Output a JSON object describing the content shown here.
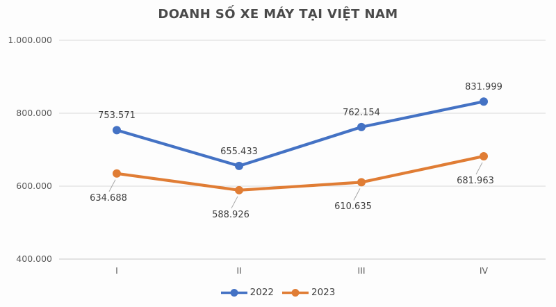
{
  "chart_data": {
    "type": "line",
    "title": "DOANH SỐ XE MÁY TẠI VIỆT NAM",
    "categories": [
      "I",
      "II",
      "III",
      "IV"
    ],
    "series": [
      {
        "name": "2022",
        "color": "#4472C4",
        "values": [
          753571,
          655433,
          762154,
          831999
        ],
        "data_labels": [
          "753.571",
          "655.433",
          "762.154",
          "831.999"
        ],
        "label_position": "above"
      },
      {
        "name": "2023",
        "color": "#E07D35",
        "values": [
          634688,
          588926,
          610635,
          681963
        ],
        "data_labels": [
          "634.688",
          "588.926",
          "610.635",
          "681.963"
        ],
        "label_position": "below"
      }
    ],
    "y_axis": {
      "min": 400000,
      "max": 1000000,
      "step": 200000,
      "ticks": [
        {
          "value": 1000000,
          "label": "1.000.000"
        },
        {
          "value": 800000,
          "label": "800.000"
        },
        {
          "value": 600000,
          "label": "600.000"
        },
        {
          "value": 400000,
          "label": "400.000"
        }
      ]
    },
    "grid": true,
    "legend_position": "bottom",
    "legend": [
      "2022",
      "2023"
    ]
  },
  "colors": {
    "gridline": "#d9d9d9",
    "axis_line": "#c6c6c6",
    "leader_line": "#a6a6a6",
    "axis_text": "#595959",
    "data_label_text": "#3f3f3f",
    "title_text": "#4a4a4a"
  }
}
